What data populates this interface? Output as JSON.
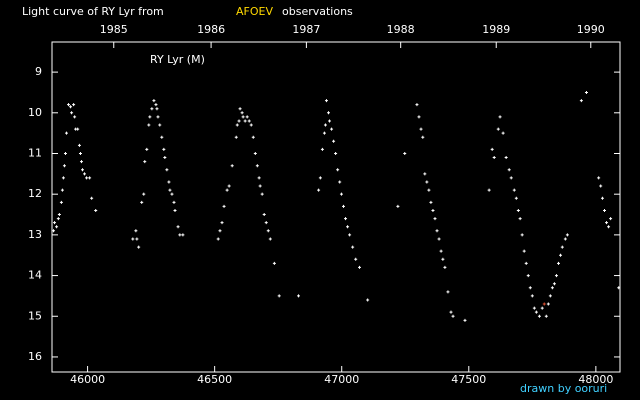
{
  "chart_data": {
    "type": "scatter",
    "title_parts": [
      "Light curve of RY Lyr from",
      "AFOEV",
      "observations"
    ],
    "title_colors": [
      "#ffffff",
      "#ffd800",
      "#ffffff"
    ],
    "annotation": "RY Lyr (M)",
    "credit": "drawn by ooruri",
    "credit_color": "#40d0ff",
    "background": "#000000",
    "axis_color": "#ffffff",
    "xlim": [
      45860,
      48095
    ],
    "xticks": [
      46000,
      46500,
      47000,
      47500,
      48000
    ],
    "x2ticks": [
      {
        "value": 46103,
        "label": "1985"
      },
      {
        "value": 46486,
        "label": "1986"
      },
      {
        "value": 46861,
        "label": "1987"
      },
      {
        "value": 47232,
        "label": "1988"
      },
      {
        "value": 47608,
        "label": "1989"
      },
      {
        "value": 47980,
        "label": "1990"
      }
    ],
    "ylim": [
      8.26,
      16.37
    ],
    "y_inverted": true,
    "yticks": [
      9,
      10,
      11,
      12,
      13,
      14,
      15,
      16
    ],
    "color": "#ffffff",
    "x": [
      45866,
      45870,
      45878,
      45885,
      45889,
      45897,
      45901,
      45905,
      45909,
      45913,
      45917,
      45925,
      45933,
      45937,
      45945,
      45949,
      45953,
      45961,
      45968,
      45972,
      45976,
      45980,
      45988,
      45996,
      46008,
      46016,
      46032,
      46178,
      46190,
      46194,
      46201,
      46213,
      46221,
      46225,
      46233,
      46241,
      46245,
      46253,
      46261,
      46269,
      46273,
      46277,
      46284,
      46292,
      46300,
      46304,
      46312,
      46320,
      46324,
      46332,
      46340,
      46344,
      46356,
      46363,
      46375,
      46514,
      46521,
      46529,
      46537,
      46549,
      46557,
      46569,
      46585,
      46589,
      46596,
      46600,
      46608,
      46612,
      46620,
      46628,
      46636,
      46644,
      46652,
      46660,
      46668,
      46675,
      46679,
      46687,
      46695,
      46703,
      46711,
      46719,
      46735,
      46754,
      46830,
      46909,
      46916,
      46924,
      46932,
      46936,
      46940,
      46948,
      46952,
      46960,
      46968,
      46976,
      46984,
      46992,
      46999,
      47007,
      47015,
      47023,
      47031,
      47043,
      47055,
      47070,
      47102,
      47221,
      47248,
      47296,
      47304,
      47312,
      47319,
      47327,
      47335,
      47343,
      47351,
      47359,
      47367,
      47375,
      47383,
      47391,
      47398,
      47406,
      47418,
      47430,
      47438,
      47485,
      47580,
      47592,
      47600,
      47616,
      47623,
      47635,
      47647,
      47659,
      47667,
      47679,
      47687,
      47695,
      47702,
      47710,
      47718,
      47726,
      47734,
      47742,
      47750,
      47758,
      47766,
      47778,
      47789,
      47805,
      47813,
      47821,
      47829,
      47837,
      47845,
      47853,
      47861,
      47868,
      47880,
      47888,
      47943,
      47963,
      48011,
      48019,
      48026,
      48034,
      48042,
      48050,
      48058,
      48090
    ],
    "values": [
      12.9,
      12.7,
      12.8,
      12.6,
      12.5,
      12.2,
      11.9,
      11.6,
      11.3,
      11.0,
      10.5,
      9.8,
      9.85,
      10.0,
      9.8,
      10.1,
      10.4,
      10.4,
      10.8,
      11.0,
      11.2,
      11.4,
      11.5,
      11.6,
      11.6,
      12.1,
      12.4,
      13.1,
      12.9,
      13.1,
      13.3,
      12.2,
      12.0,
      11.2,
      10.9,
      10.3,
      10.1,
      9.9,
      9.7,
      9.8,
      9.9,
      10.1,
      10.3,
      10.6,
      10.9,
      11.1,
      11.4,
      11.7,
      11.9,
      12.0,
      12.2,
      12.4,
      12.8,
      13.0,
      13.0,
      13.1,
      12.9,
      12.7,
      12.3,
      11.9,
      11.8,
      11.3,
      10.6,
      10.3,
      10.2,
      9.9,
      10.0,
      10.1,
      10.2,
      10.1,
      10.2,
      10.3,
      10.6,
      11.0,
      11.3,
      11.6,
      11.8,
      12.0,
      12.5,
      12.7,
      12.9,
      13.1,
      13.7,
      14.5,
      14.5,
      11.9,
      11.6,
      10.9,
      10.5,
      10.3,
      9.7,
      10.0,
      10.2,
      10.4,
      10.7,
      11.0,
      11.4,
      11.7,
      12.0,
      12.3,
      12.6,
      12.8,
      13.0,
      13.3,
      13.6,
      13.8,
      14.6,
      12.3,
      11.0,
      9.8,
      10.1,
      10.4,
      10.6,
      11.5,
      11.7,
      11.9,
      12.2,
      12.4,
      12.6,
      12.9,
      13.1,
      13.4,
      13.6,
      13.8,
      14.4,
      14.9,
      15.0,
      15.1,
      11.9,
      10.9,
      11.1,
      10.4,
      10.1,
      10.5,
      11.1,
      11.4,
      11.6,
      11.9,
      12.1,
      12.4,
      12.6,
      13.0,
      13.4,
      13.7,
      14.0,
      14.3,
      14.5,
      14.8,
      14.9,
      15.0,
      14.8,
      15.0,
      14.7,
      14.5,
      14.3,
      14.2,
      14.0,
      13.7,
      13.5,
      13.3,
      13.1,
      13.0,
      9.7,
      9.5,
      11.6,
      11.8,
      12.1,
      12.4,
      12.7,
      12.8,
      12.6,
      14.3
    ],
    "special_points": {
      "x": [
        47797
      ],
      "values": [
        14.7
      ],
      "color": "#e05030"
    }
  }
}
